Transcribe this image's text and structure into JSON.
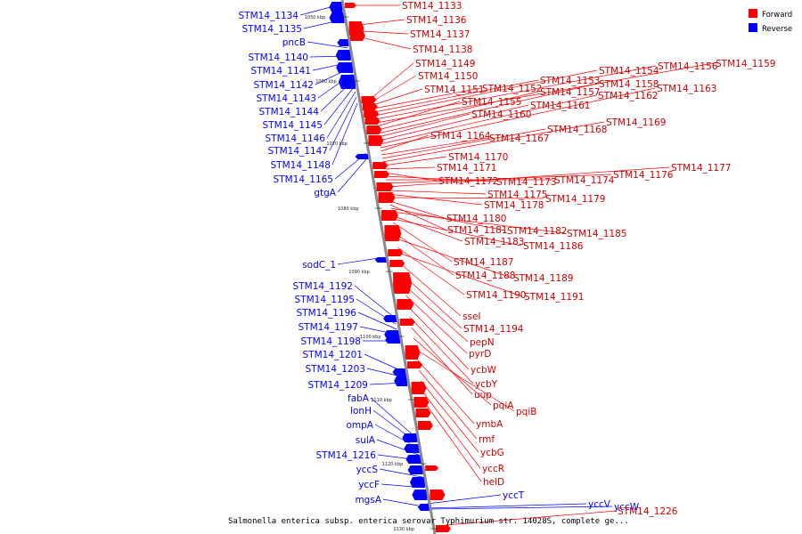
{
  "legend": [
    {
      "label": "Forward",
      "color": "#ff0000"
    },
    {
      "label": "Reverse",
      "color": "#0000ff"
    }
  ],
  "caption": "Salmonella enterica subsp. enterica serovar Typhimurium str. 14028S, complete ge...",
  "ticks": [
    "1050 kbp",
    "1060 kbp",
    "1070 kbp",
    "1080 kbp",
    "1090 kbp",
    "1100 kbp",
    "1110 kbp",
    "1120 kbp",
    "1130 kbp"
  ],
  "reverse_genes": [
    "STM14_1134",
    "STM14_1135",
    "pncB",
    "STM14_1140",
    "STM14_1141",
    "STM14_1142",
    "STM14_1143",
    "STM14_1144",
    "STM14_1145",
    "STM14_1146",
    "STM14_1147",
    "STM14_1148",
    "STM14_1165",
    "gtgA",
    "sodC_1",
    "STM14_1192",
    "STM14_1195",
    "STM14_1196",
    "STM14_1197",
    "STM14_1198",
    "STM14_1201",
    "STM14_1203",
    "STM14_1209",
    "fabA",
    "lonH",
    "ompA",
    "sulA",
    "STM14_1216",
    "yccS",
    "yccF",
    "mgsA",
    "yccT",
    "yccV",
    "yccW"
  ],
  "forward_genes": [
    "STM14_1133",
    "STM14_1136",
    "STM14_1137",
    "STM14_1138",
    "STM14_1149",
    "STM14_1150",
    "STM14_1151",
    "STM14_1152",
    "STM14_1153",
    "STM14_1154",
    "STM14_1156",
    "STM14_1159",
    "STM14_1155",
    "STM14_1157",
    "STM14_1158",
    "STM14_1160",
    "STM14_1161",
    "STM14_1162",
    "STM14_1163",
    "STM14_1164",
    "STM14_1167",
    "STM14_1168",
    "STM14_1169",
    "STM14_1170",
    "STM14_1171",
    "STM14_1172",
    "STM14_1173",
    "STM14_1174",
    "STM14_1176",
    "STM14_1177",
    "STM14_1175",
    "STM14_1178",
    "STM14_1179",
    "STM14_1180",
    "STM14_1181",
    "STM14_1182",
    "STM14_1185",
    "STM14_1183",
    "STM14_1186",
    "STM14_1187",
    "STM14_1188",
    "STM14_1189",
    "STM14_1190",
    "STM14_1191",
    "sseI",
    "STM14_1194",
    "pepN",
    "pyrD",
    "ycbW",
    "ycbY",
    "uup",
    "pqiA",
    "pqiB",
    "ymbA",
    "rmf",
    "ycbG",
    "yccR",
    "helD",
    "STM14_1226"
  ]
}
